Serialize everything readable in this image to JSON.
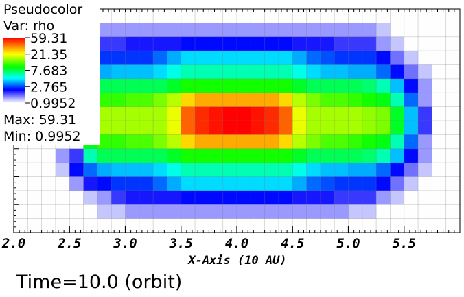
{
  "legend": {
    "plot_type": "Pseudocolor",
    "var_label": "Var: rho",
    "max_label": "Max:  59.31",
    "min_label": "Min:  0.9952",
    "colors": [
      "#ff0000",
      "#ffff00",
      "#00ff00",
      "#00ffff",
      "#0000ff",
      "#ffffff"
    ]
  },
  "time_label": "Time=10.0 (orbit)",
  "chart_data": {
    "type": "heatmap",
    "title": "Pseudocolor",
    "variable": "rho",
    "xlabel": "X-Axis (10 AU)",
    "ylabel": "",
    "xlim": [
      2.0,
      6.0
    ],
    "x_ticks": [
      "2.0",
      "2.5",
      "3.0",
      "3.5",
      "4.0",
      "4.5",
      "5.0",
      "5.5"
    ],
    "x_tick_values": [
      2.0,
      2.5,
      3.0,
      3.5,
      4.0,
      4.5,
      5.0,
      5.5
    ],
    "colorbar_ticks": [
      "59.31",
      "21.35",
      "7.683",
      "2.765",
      "0.9952"
    ],
    "colorbar_tick_values": [
      59.31,
      21.35,
      7.683,
      2.765,
      0.9952
    ],
    "log_scale": true,
    "vmin": 0.9952,
    "vmax": 59.31,
    "max": 59.31,
    "min": 0.9952,
    "grid": true,
    "cols": 32,
    "rows": 16,
    "grid_values": [
      [
        1,
        1,
        1,
        1,
        1,
        1,
        1,
        1,
        1,
        1,
        1,
        1,
        1,
        1,
        1,
        1,
        1,
        1,
        1,
        1,
        1,
        1,
        1,
        1,
        1,
        1,
        1,
        1,
        1,
        1,
        1,
        1
      ],
      [
        1,
        1,
        1,
        1,
        1,
        1.3,
        1.6,
        1.6,
        1.6,
        1.6,
        1.6,
        1.6,
        1.6,
        1.6,
        1.6,
        1.6,
        1.6,
        1.6,
        1.6,
        1.6,
        1.6,
        1.6,
        1.6,
        1.6,
        1.6,
        1.6,
        1.3,
        1,
        1,
        1,
        1,
        1
      ],
      [
        1,
        1,
        1,
        1,
        1,
        1.6,
        2.1,
        2.1,
        2.3,
        2.3,
        2.3,
        2.3,
        2.5,
        2.5,
        2.5,
        2.5,
        2.5,
        2.5,
        2.5,
        2.5,
        2.3,
        2.3,
        2.3,
        2.1,
        2.1,
        2.1,
        1.6,
        1.3,
        1,
        1,
        1,
        1
      ],
      [
        1,
        1,
        1,
        1,
        1,
        2.5,
        2.8,
        2.8,
        2.8,
        2.8,
        3.2,
        3.8,
        4.3,
        4.3,
        4.3,
        4.3,
        4.3,
        4.3,
        4.3,
        4.3,
        3.8,
        3.2,
        3.0,
        2.8,
        2.8,
        2.8,
        2.5,
        1.8,
        1.3,
        1,
        1,
        1
      ],
      [
        1,
        1,
        1,
        1,
        1,
        3.2,
        3.8,
        4.0,
        4.0,
        4.0,
        4.3,
        5.0,
        5.8,
        5.8,
        5.8,
        5.8,
        5.8,
        5.8,
        5.8,
        5.8,
        5.0,
        4.3,
        4.0,
        4.0,
        3.8,
        3.8,
        3.2,
        2.5,
        1.8,
        1.3,
        1,
        1
      ],
      [
        1,
        1,
        1,
        1,
        1,
        5.8,
        7.5,
        7.5,
        7.5,
        7.5,
        7.5,
        8.5,
        10,
        10,
        10,
        10,
        10,
        10,
        10,
        10,
        8.5,
        7.5,
        7.5,
        7.5,
        7.5,
        7.0,
        5.8,
        4.0,
        2.5,
        1.6,
        1,
        1
      ],
      [
        1,
        1,
        1,
        1,
        1,
        9,
        11,
        11,
        12,
        12,
        14,
        17,
        25,
        30,
        30,
        30,
        30,
        30,
        30,
        25,
        17,
        14,
        12,
        12,
        11,
        10,
        9,
        5.8,
        3.2,
        1.6,
        1,
        1
      ],
      [
        1,
        1,
        1,
        1,
        1,
        14,
        16,
        16,
        16,
        16,
        16,
        20,
        40,
        50,
        55,
        59,
        59,
        55,
        50,
        40,
        20,
        16,
        16,
        16,
        16,
        15,
        14,
        8.5,
        4.0,
        2.1,
        1,
        1
      ],
      [
        1,
        1,
        1,
        1,
        1,
        14,
        16,
        16,
        16,
        16,
        16,
        20,
        40,
        50,
        55,
        59,
        59,
        55,
        50,
        40,
        20,
        16,
        16,
        16,
        16,
        15,
        14,
        8.5,
        4.0,
        2.1,
        1,
        1
      ],
      [
        1,
        1,
        1,
        1,
        1,
        9,
        11,
        11,
        12,
        12,
        14,
        17,
        25,
        30,
        30,
        30,
        30,
        30,
        30,
        25,
        17,
        14,
        12,
        12,
        11,
        10,
        9,
        5.8,
        3.2,
        1.6,
        1,
        1
      ],
      [
        1,
        1,
        1,
        1.6,
        2.1,
        5.8,
        7.5,
        7.5,
        7.5,
        7.5,
        7.5,
        8.5,
        10,
        10,
        10,
        10,
        10,
        10,
        10,
        10,
        8.5,
        7.5,
        7.5,
        7.5,
        7.5,
        7.0,
        5.8,
        4.0,
        2.5,
        1.6,
        1,
        1
      ],
      [
        1,
        1,
        1,
        1.3,
        2.5,
        3.2,
        3.8,
        4.0,
        4.0,
        4.0,
        4.3,
        5.0,
        5.8,
        5.8,
        5.8,
        5.8,
        5.8,
        5.8,
        5.8,
        5.8,
        5.0,
        4.3,
        4.0,
        4.0,
        3.8,
        3.8,
        3.2,
        2.5,
        1.8,
        1.3,
        1,
        1
      ],
      [
        1,
        1,
        1,
        1,
        1.6,
        2.3,
        2.5,
        2.8,
        2.8,
        2.8,
        3.2,
        3.8,
        4.3,
        4.3,
        4.3,
        4.3,
        4.3,
        4.3,
        4.3,
        4.3,
        3.8,
        3.2,
        3.0,
        2.8,
        2.8,
        2.8,
        2.5,
        1.8,
        1.3,
        1,
        1,
        1
      ],
      [
        1,
        1,
        1,
        1,
        1,
        1.3,
        1.6,
        2.1,
        2.3,
        2.3,
        2.3,
        2.3,
        2.5,
        2.5,
        2.5,
        2.5,
        2.5,
        2.5,
        2.5,
        2.5,
        2.3,
        2.3,
        2.3,
        2.1,
        2.1,
        2.1,
        1.6,
        1.3,
        1,
        1,
        1,
        1
      ],
      [
        1,
        1,
        1,
        1,
        1,
        1,
        1.3,
        1.3,
        1.6,
        1.6,
        1.6,
        1.6,
        1.6,
        1.6,
        1.6,
        1.6,
        1.6,
        1.6,
        1.6,
        1.6,
        1.6,
        1.6,
        1.6,
        1.6,
        1.3,
        1.3,
        1,
        1,
        1,
        1,
        1,
        1
      ],
      [
        1,
        1,
        1,
        1,
        1,
        1,
        1,
        1,
        1,
        1,
        1,
        1,
        1,
        1,
        1,
        1,
        1,
        1,
        1,
        1,
        1,
        1,
        1,
        1,
        1,
        1,
        1,
        1,
        1,
        1,
        1,
        1
      ]
    ]
  }
}
